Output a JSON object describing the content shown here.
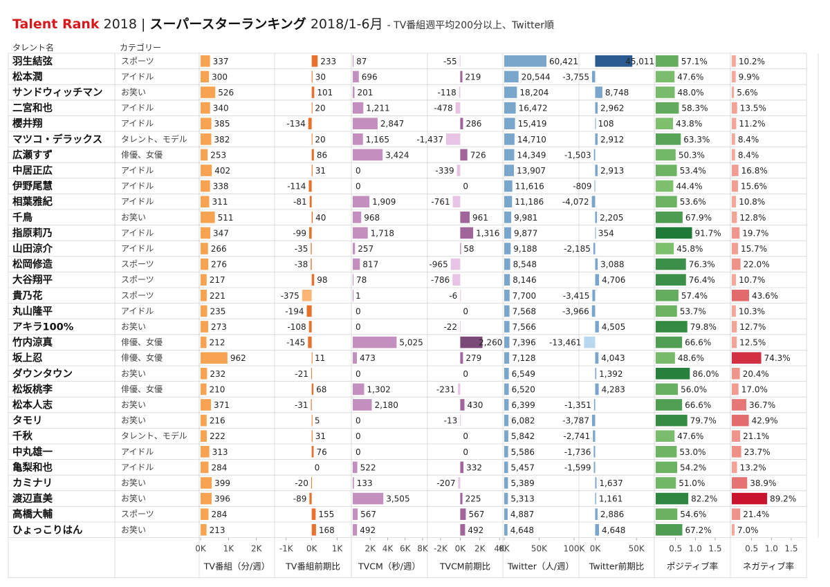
{
  "title": {
    "brand": "Talent Rank",
    "year": "2018",
    "sep": "|",
    "main": "スーパースターランキング",
    "range": "2018/1-6月",
    "subtitle": "- TV番組週平均200分以上、Twitter順"
  },
  "headers": {
    "name": "タレント名",
    "category": "カテゴリー"
  },
  "chart_data": {
    "type": "bar",
    "title": "Talent Rank 2018 | スーパースターランキング 2018/1-6月",
    "categories": [
      "羽生結弦",
      "松本潤",
      "サンドウィッチマン",
      "二宮和也",
      "櫻井翔",
      "マツコ・デラックス",
      "広瀬すず",
      "中居正広",
      "伊野尾慧",
      "相葉雅紀",
      "千鳥",
      "指原莉乃",
      "山田涼介",
      "松岡修造",
      "大谷翔平",
      "貴乃花",
      "丸山隆平",
      "アキラ100%",
      "竹内涼真",
      "坂上忍",
      "ダウンタウン",
      "松坂桃李",
      "松本人志",
      "タモリ",
      "千秋",
      "中丸雄一",
      "亀梨和也",
      "カミナリ",
      "渡辺直美",
      "高橋大輔",
      "ひょっこりはん"
    ],
    "talent_category": [
      "スポーツ",
      "アイドル",
      "お笑い",
      "アイドル",
      "アイドル",
      "タレント、モデル",
      "俳優、女優",
      "アイドル",
      "アイドル",
      "アイドル",
      "お笑い",
      "アイドル",
      "アイドル",
      "スポーツ",
      "スポーツ",
      "スポーツ",
      "アイドル",
      "お笑い",
      "俳優、女優",
      "俳優、女優",
      "お笑い",
      "俳優、女優",
      "お笑い",
      "お笑い",
      "タレント、モデル",
      "アイドル",
      "アイドル",
      "お笑い",
      "お笑い",
      "スポーツ",
      "お笑い"
    ],
    "series": [
      {
        "name": "TV番組（分/週）",
        "ticks": [
          "0K",
          "1K",
          "2K"
        ],
        "domain": [
          0,
          2600
        ],
        "tick_values": [
          0,
          1000,
          2000
        ],
        "values": [
          337,
          300,
          526,
          340,
          385,
          382,
          253,
          402,
          338,
          311,
          511,
          347,
          266,
          276,
          217,
          221,
          235,
          273,
          212,
          962,
          232,
          210,
          371,
          216,
          222,
          313,
          284,
          399,
          396,
          284,
          213
        ]
      },
      {
        "name": "TV番組前期比",
        "ticks": [
          "-1K",
          "0K",
          "1K"
        ],
        "domain": [
          -1400,
          1500
        ],
        "tick_values": [
          -1000,
          0,
          1000
        ],
        "values": [
          233,
          30,
          101,
          20,
          -134,
          20,
          86,
          31,
          -114,
          -81,
          40,
          -99,
          -35,
          -38,
          98,
          -375,
          -194,
          -108,
          -145,
          11,
          -21,
          68,
          -31,
          5,
          31,
          76,
          0,
          -20,
          -89,
          155,
          168
        ]
      },
      {
        "name": "TVCM（秒/週）",
        "ticks": [
          "2K",
          "4K",
          "6K",
          "8K"
        ],
        "domain": [
          0,
          8400
        ],
        "tick_values": [
          2000,
          4000,
          6000,
          8000
        ],
        "values": [
          87,
          696,
          201,
          1211,
          2847,
          1165,
          3424,
          0,
          0,
          1909,
          968,
          1718,
          257,
          817,
          78,
          1,
          0,
          0,
          5025,
          473,
          0,
          1302,
          2180,
          0,
          0,
          0,
          522,
          133,
          3505,
          567,
          492
        ]
      },
      {
        "name": "TVCM前期比",
        "ticks": [
          "-2K",
          "0K",
          "2K",
          "4K"
        ],
        "domain": [
          -3200,
          4200
        ],
        "tick_values": [
          -2000,
          0,
          2000,
          4000
        ],
        "values": [
          -55,
          219,
          -118,
          -478,
          286,
          -1437,
          726,
          -339,
          0,
          -761,
          961,
          1316,
          58,
          -965,
          -786,
          -6,
          0,
          -22,
          2260,
          279,
          0,
          -231,
          430,
          -13,
          0,
          0,
          332,
          -207,
          225,
          567,
          492
        ]
      },
      {
        "name": "Twitter（人/週）",
        "ticks": [
          "0K",
          "50K",
          "100K"
        ],
        "domain": [
          0,
          105000
        ],
        "tick_values": [
          0,
          50000,
          100000
        ],
        "values": [
          60421,
          20544,
          18204,
          16472,
          15419,
          14710,
          14349,
          13907,
          11616,
          11186,
          9981,
          9877,
          9188,
          8548,
          8146,
          7700,
          7568,
          7566,
          7396,
          7128,
          6549,
          6520,
          6399,
          6082,
          5842,
          5586,
          5457,
          5389,
          5313,
          4887,
          4648
        ]
      },
      {
        "name": "Twitter前期比",
        "ticks": [
          "0K",
          "50K"
        ],
        "domain": [
          -18000,
          70000
        ],
        "tick_values": [
          0,
          50000
        ],
        "values": [
          45011,
          -3755,
          8748,
          2962,
          108,
          2912,
          -1503,
          2913,
          -809,
          -4072,
          2205,
          354,
          -2185,
          3088,
          4706,
          -3415,
          -3966,
          4505,
          -13461,
          4043,
          1392,
          4283,
          -1351,
          -3787,
          -2741,
          -1736,
          -1599,
          1637,
          1161,
          2886,
          4648
        ]
      },
      {
        "name": "ポジティブ率",
        "ticks": [
          "0.5",
          "1.0",
          "1.5"
        ],
        "domain": [
          0,
          1.85
        ],
        "tick_values": [
          0.5,
          1.0,
          1.5
        ],
        "percent": true,
        "values": [
          57.1,
          47.6,
          48.0,
          58.3,
          43.8,
          63.3,
          50.3,
          53.4,
          44.4,
          53.6,
          67.9,
          91.7,
          45.8,
          76.3,
          76.4,
          57.4,
          53.7,
          79.8,
          66.6,
          48.6,
          86.0,
          56.0,
          66.6,
          79.7,
          47.6,
          53.0,
          54.2,
          51.0,
          82.2,
          54.6,
          67.2
        ]
      },
      {
        "name": "ネガティブ率",
        "ticks": [
          "0.5",
          "1.0",
          "1.5"
        ],
        "domain": [
          0,
          1.85
        ],
        "tick_values": [
          0.5,
          1.0,
          1.5
        ],
        "percent": true,
        "values": [
          10.2,
          9.9,
          5.6,
          13.5,
          11.2,
          8.4,
          8.4,
          16.8,
          15.6,
          10.8,
          12.8,
          19.7,
          15.7,
          22.0,
          10.7,
          43.6,
          10.3,
          12.7,
          12.5,
          74.3,
          20.4,
          17.0,
          36.7,
          42.9,
          21.1,
          23.7,
          13.2,
          38.9,
          89.2,
          21.4,
          7.0
        ]
      }
    ],
    "colors": {
      "tv": "#f7a352",
      "tvdiff": "#e8722c",
      "tvdiff_neg": "#fbb676",
      "cm": "#c28fbe",
      "cm_neg": "#e9c8e5",
      "cmdiff_pos": "#a0669c",
      "cmdiff_neg": "#e8c4e4",
      "cmdiff_max": "#7b4a79",
      "twitter": "#7aa6cc",
      "twdiff": "#7aa6cc",
      "twdiff_max": "#2a5a8f",
      "twdiff_neg": "#b8d7f0",
      "pos_light": "#7ec06e",
      "pos_dark": "#1f7a37",
      "neg_light": "#f6a89b",
      "neg_dark": "#c8142c",
      "grid": "#d4d4d4"
    }
  }
}
